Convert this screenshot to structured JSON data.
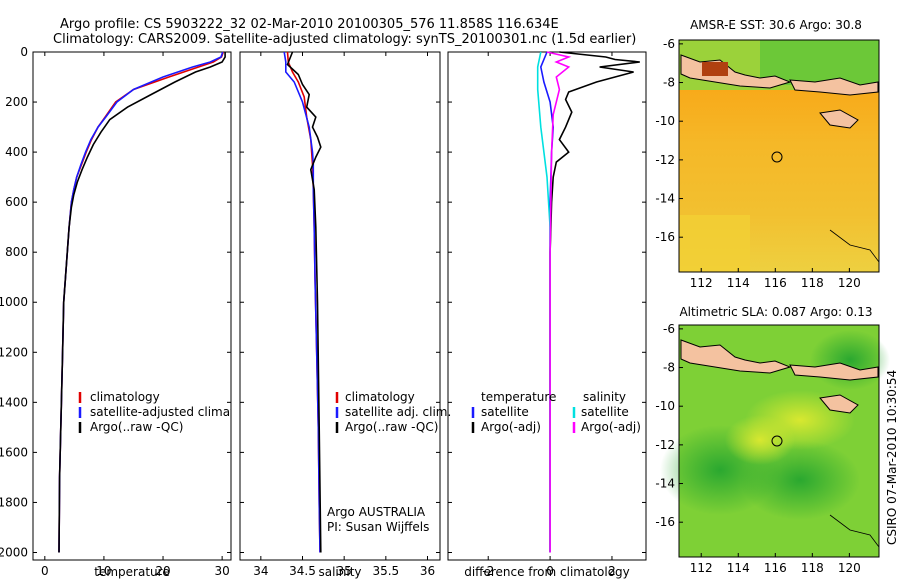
{
  "title_line1": "Argo profile: CS 5903222_32 02-Mar-2010 20100305_576 11.858S 116.634E",
  "title_line2": "Climatology: CARS2009. Satellite-adjusted climatology: synTS_20100301.nc (1.5d earlier)",
  "side_label": "CSIRO 07-Mar-2010 10:30:54",
  "colors": {
    "climatology": "#e00000",
    "satellite": "#1a1aff",
    "argo": "#000000",
    "salinity_sat": "#00e0e0",
    "salinity_argo": "#ff00ff"
  },
  "chart_data": [
    {
      "id": "temperature",
      "type": "line",
      "xlabel": "temperature",
      "xlim": [
        -2,
        31.5
      ],
      "ylim": [
        2030,
        0
      ],
      "xticks": [
        0,
        10,
        20,
        30
      ],
      "yticks": [
        0,
        200,
        400,
        600,
        800,
        1000,
        1200,
        1400,
        1600,
        1800,
        2000
      ],
      "legend": [
        "climatology",
        "satellite-adjusted climatology",
        "Argo(..raw -QC)"
      ],
      "series": [
        {
          "name": "climatology",
          "color": "#e00000",
          "x": [
            30.2,
            29.9,
            28.5,
            26,
            21,
            15,
            12,
            10.2,
            9,
            7.9,
            7,
            6.2,
            5.4,
            4.9,
            4.5,
            4.1,
            3.8,
            3.5,
            3.2,
            3,
            2.8,
            2.5,
            2.4
          ],
          "y": [
            0,
            20,
            40,
            60,
            100,
            150,
            200,
            260,
            300,
            350,
            400,
            450,
            500,
            550,
            600,
            700,
            800,
            900,
            1000,
            1200,
            1400,
            1700,
            2000
          ]
        },
        {
          "name": "satellite-adjusted climatology",
          "color": "#1a1aff",
          "x": [
            30.1,
            29.8,
            28,
            25,
            20,
            15,
            12.2,
            10.3,
            9,
            7.8,
            6.9,
            6.1,
            5.4,
            4.9,
            4.5,
            4.1,
            3.8,
            3.5,
            3.2,
            3,
            2.8,
            2.5,
            2.4
          ],
          "y": [
            0,
            20,
            40,
            60,
            100,
            150,
            200,
            260,
            300,
            350,
            400,
            450,
            500,
            550,
            600,
            700,
            800,
            900,
            1000,
            1200,
            1400,
            1700,
            2000
          ]
        },
        {
          "name": "Argo(..raw -QC)",
          "color": "#000000",
          "x": [
            30.5,
            30.5,
            30,
            28,
            25.5,
            22,
            18,
            14,
            11,
            9.5,
            8.2,
            7.2,
            6.3,
            5.5,
            4.9,
            4.5,
            4.1,
            3.8,
            3.5,
            3.2,
            3,
            2.8,
            2.5,
            2.4
          ],
          "y": [
            0,
            20,
            40,
            60,
            80,
            120,
            170,
            220,
            270,
            320,
            370,
            420,
            470,
            520,
            570,
            620,
            700,
            800,
            900,
            1000,
            1200,
            1400,
            1700,
            2000
          ]
        }
      ]
    },
    {
      "id": "salinity",
      "type": "line",
      "xlabel": "salinity",
      "xlim": [
        33.75,
        36.15
      ],
      "ylim": [
        2030,
        0
      ],
      "xticks": [
        34,
        34.5,
        35,
        35.5,
        36
      ],
      "legend": [
        "climatology",
        "satellite adj. clim.",
        "Argo(..raw -QC)"
      ],
      "annotations": [
        "Argo AUSTRALIA",
        "PI: Susan Wijffels"
      ],
      "series": [
        {
          "name": "climatology",
          "color": "#e00000",
          "x": [
            34.32,
            34.33,
            34.38,
            34.45,
            34.52,
            34.55,
            34.6,
            34.62,
            34.63,
            34.64,
            34.65,
            34.67,
            34.69,
            34.7,
            34.71
          ],
          "y": [
            0,
            40,
            80,
            120,
            180,
            260,
            350,
            450,
            550,
            700,
            900,
            1200,
            1500,
            1800,
            2000
          ]
        },
        {
          "name": "satellite adj. clim.",
          "color": "#1a1aff",
          "x": [
            34.28,
            34.3,
            34.3,
            34.4,
            34.5,
            34.58,
            34.62,
            34.63,
            34.63,
            34.64,
            34.65,
            34.67,
            34.69,
            34.7,
            34.71
          ],
          "y": [
            0,
            40,
            80,
            120,
            200,
            300,
            400,
            450,
            550,
            700,
            900,
            1200,
            1500,
            1800,
            2000
          ]
        },
        {
          "name": "Argo(..raw -QC)",
          "color": "#000000",
          "x": [
            34.38,
            34.32,
            34.45,
            34.5,
            34.58,
            34.55,
            34.66,
            34.62,
            34.68,
            34.72,
            34.66,
            34.6,
            34.64,
            34.66,
            34.68,
            34.7,
            34.72
          ],
          "y": [
            0,
            50,
            90,
            130,
            170,
            220,
            260,
            300,
            340,
            380,
            420,
            470,
            550,
            700,
            1000,
            1500,
            2000
          ]
        }
      ]
    },
    {
      "id": "difference",
      "type": "line",
      "xlabel": "difference from climatology",
      "xlim": [
        -3.3,
        3.1
      ],
      "ylim": [
        2030,
        0
      ],
      "xticks": [
        -2,
        0,
        2
      ],
      "legend_left": [
        "temperature",
        "satellite",
        "Argo(-adj)"
      ],
      "legend_right": [
        "salinity",
        "satellite",
        "Argo(-adj)"
      ],
      "series": [
        {
          "name": "temperature satellite",
          "color": "#1a1aff",
          "x": [
            -0.1,
            -0.3,
            -0.2,
            0,
            0.1,
            0.05,
            0,
            0,
            0,
            0
          ],
          "y": [
            0,
            60,
            120,
            200,
            300,
            400,
            600,
            1000,
            1500,
            2000
          ]
        },
        {
          "name": "temperature Argo(-adj)",
          "color": "#000000",
          "x": [
            0.3,
            1.8,
            2.1,
            2.9,
            1.6,
            2.7,
            1.5,
            0.6,
            0.5,
            0.7,
            0.5,
            0.3,
            0.6,
            0.2,
            0.1,
            0.05,
            0,
            0,
            0
          ],
          "y": [
            0,
            20,
            30,
            40,
            60,
            80,
            120,
            160,
            190,
            240,
            300,
            350,
            400,
            440,
            500,
            600,
            800,
            1200,
            2000
          ]
        },
        {
          "name": "salinity satellite",
          "color": "#00e0e0",
          "x": [
            -0.3,
            -0.4,
            -0.4,
            -0.3,
            -0.2,
            -0.1,
            0,
            0,
            0
          ],
          "y": [
            0,
            60,
            150,
            300,
            400,
            500,
            700,
            1000,
            2000
          ]
        },
        {
          "name": "salinity Argo(-adj)",
          "color": "#ff00ff",
          "x": [
            -0.1,
            0.6,
            0.2,
            0.6,
            0.2,
            0.3,
            0.1,
            0.05,
            0,
            0
          ],
          "y": [
            0,
            20,
            40,
            60,
            100,
            150,
            250,
            400,
            800,
            2000
          ]
        }
      ]
    },
    {
      "id": "sst_map",
      "type": "heatmap",
      "title": "AMSR-E SST: 30.6 Argo: 30.8",
      "xticks": [
        112,
        114,
        116,
        118,
        120
      ],
      "yticks": [
        -6,
        -8,
        -10,
        -12,
        -14,
        -16
      ],
      "marker": {
        "lon": 116.634,
        "lat": -11.858
      }
    },
    {
      "id": "sla_map",
      "type": "heatmap",
      "title": "Altimetric SLA: 0.087 Argo: 0.13",
      "xticks": [
        112,
        114,
        116,
        118,
        120
      ],
      "yticks": [
        -6,
        -8,
        -10,
        -12,
        -14,
        -16
      ],
      "marker": {
        "lon": 116.634,
        "lat": -11.858
      }
    }
  ]
}
